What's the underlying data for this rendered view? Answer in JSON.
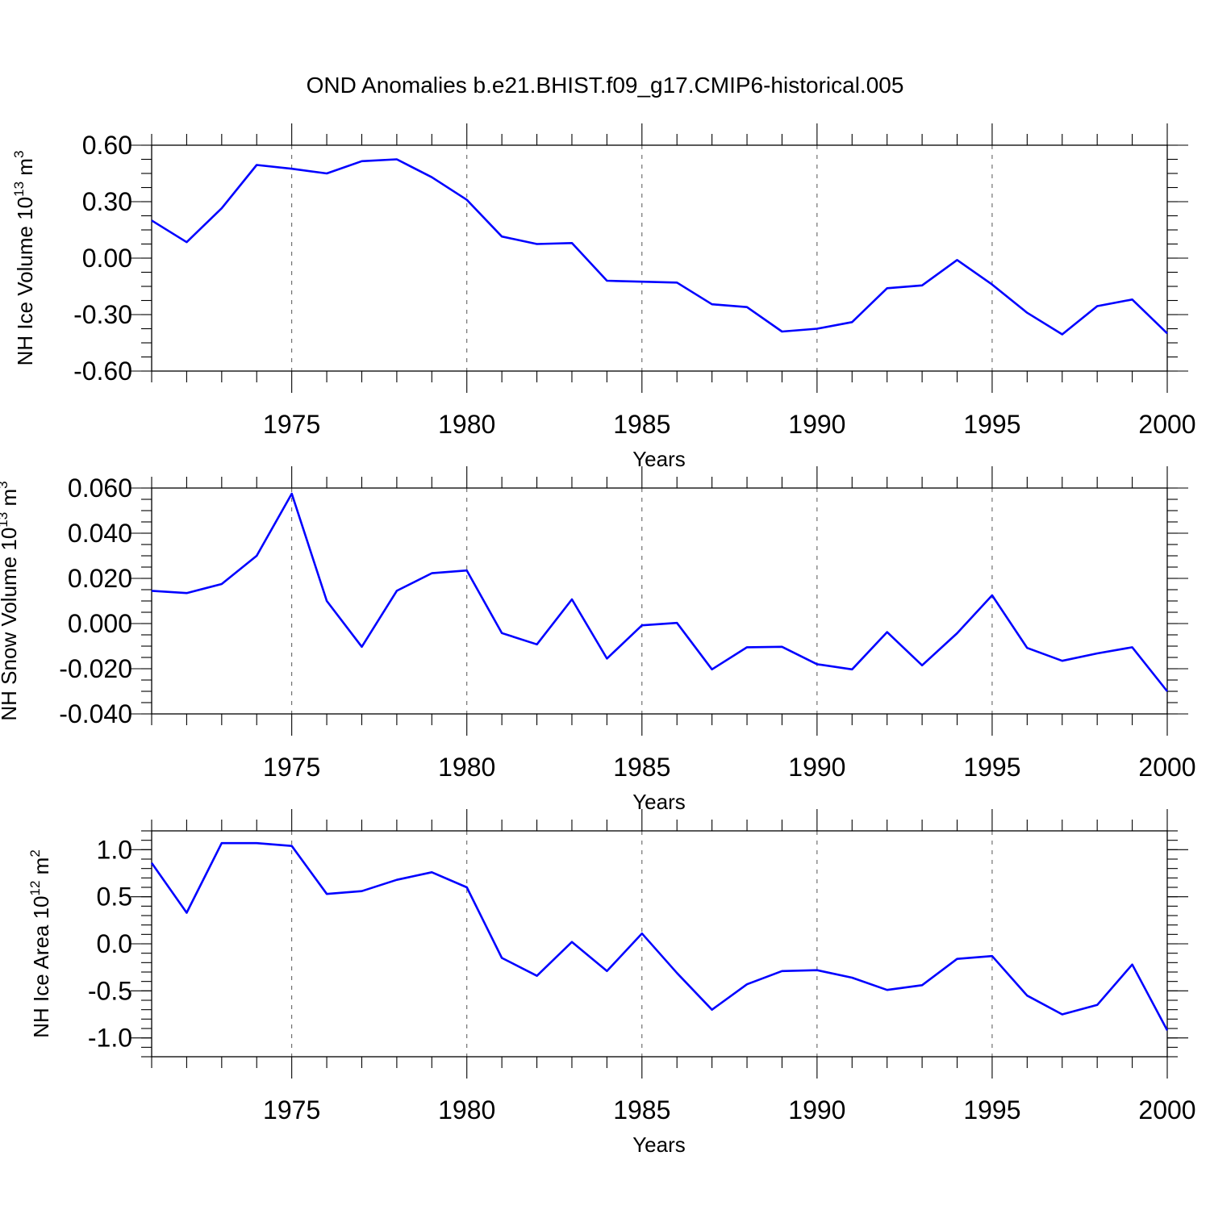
{
  "title": "OND Anomalies b.e21.BHIST.f09_g17.CMIP6-historical.005",
  "chart_data": [
    {
      "type": "line",
      "ylabel_main": "NH Ice Volume 10",
      "ylabel_exp": "13",
      "ylabel_unit": " m",
      "ylabel_unit_exp": "3",
      "xlabel": "Years",
      "xlim": [
        1971,
        2000
      ],
      "ylim": [
        -0.6,
        0.6
      ],
      "y_ticks": [
        "0.60",
        "0.30",
        "0.00",
        "-0.30",
        "-0.60"
      ],
      "y_tick_values": [
        0.6,
        0.3,
        0.0,
        -0.3,
        -0.6
      ],
      "x_ticks": [
        "1975",
        "1980",
        "1985",
        "1990",
        "1995",
        "2000"
      ],
      "x_tick_values": [
        1975,
        1980,
        1985,
        1990,
        1995,
        2000
      ],
      "grid": "dashed vertical at labeled years",
      "color": "#0000ff",
      "x": [
        1971,
        1972,
        1973,
        1974,
        1975,
        1976,
        1977,
        1978,
        1979,
        1980,
        1981,
        1982,
        1983,
        1984,
        1985,
        1986,
        1987,
        1988,
        1989,
        1990,
        1991,
        1992,
        1993,
        1994,
        1995,
        1996,
        1997,
        1998,
        1999,
        2000
      ],
      "values": [
        0.2,
        0.085,
        0.265,
        0.495,
        0.475,
        0.45,
        0.515,
        0.525,
        0.43,
        0.31,
        0.115,
        0.075,
        0.08,
        -0.12,
        -0.125,
        -0.13,
        -0.245,
        -0.26,
        -0.39,
        -0.375,
        -0.34,
        -0.16,
        -0.145,
        -0.01,
        -0.14,
        -0.29,
        -0.405,
        -0.255,
        -0.22,
        -0.4
      ]
    },
    {
      "type": "line",
      "ylabel_main": "NH Snow Volume 10",
      "ylabel_exp": "13",
      "ylabel_unit": " m",
      "ylabel_unit_exp": "3",
      "xlabel": "Years",
      "xlim": [
        1971,
        2000
      ],
      "ylim": [
        -0.04,
        0.06
      ],
      "y_ticks": [
        "0.060",
        "0.040",
        "0.020",
        "0.000",
        "-0.020",
        "-0.040"
      ],
      "y_tick_values": [
        0.06,
        0.04,
        0.02,
        0.0,
        -0.02,
        -0.04
      ],
      "x_ticks": [
        "1975",
        "1980",
        "1985",
        "1990",
        "1995",
        "2000"
      ],
      "x_tick_values": [
        1975,
        1980,
        1985,
        1990,
        1995,
        2000
      ],
      "grid": "dashed vertical at labeled years",
      "color": "#0000ff",
      "x": [
        1971,
        1972,
        1973,
        1974,
        1975,
        1976,
        1977,
        1978,
        1979,
        1980,
        1981,
        1982,
        1983,
        1984,
        1985,
        1986,
        1987,
        1988,
        1989,
        1990,
        1991,
        1992,
        1993,
        1994,
        1995,
        1996,
        1997,
        1998,
        1999,
        2000
      ],
      "values": [
        0.0145,
        0.0135,
        0.0175,
        0.03,
        0.0575,
        0.01,
        -0.0103,
        0.0145,
        0.0223,
        0.0235,
        -0.0042,
        -0.0092,
        0.0107,
        -0.0155,
        -0.0008,
        0.0003,
        -0.0203,
        -0.0105,
        -0.0103,
        -0.018,
        -0.0203,
        -0.0038,
        -0.0185,
        -0.0043,
        0.0125,
        -0.0108,
        -0.0165,
        -0.0132,
        -0.0105,
        -0.03
      ]
    },
    {
      "type": "line",
      "ylabel_main": "NH Ice Area 10",
      "ylabel_exp": "12",
      "ylabel_unit": " m",
      "ylabel_unit_exp": "2",
      "xlabel": "Years",
      "xlim": [
        1971,
        2000
      ],
      "ylim": [
        -1.2,
        1.2
      ],
      "y_ticks": [
        "1.0",
        "0.5",
        "0.0",
        "-0.5",
        "-1.0"
      ],
      "y_tick_values": [
        1.0,
        0.5,
        0.0,
        -0.5,
        -1.0
      ],
      "x_ticks": [
        "1975",
        "1980",
        "1985",
        "1990",
        "1995",
        "2000"
      ],
      "x_tick_values": [
        1975,
        1980,
        1985,
        1990,
        1995,
        2000
      ],
      "grid": "dashed vertical at labeled years",
      "color": "#0000ff",
      "x": [
        1971,
        1972,
        1973,
        1974,
        1975,
        1976,
        1977,
        1978,
        1979,
        1980,
        1981,
        1982,
        1983,
        1984,
        1985,
        1986,
        1987,
        1988,
        1989,
        1990,
        1991,
        1992,
        1993,
        1994,
        1995,
        1996,
        1997,
        1998,
        1999,
        2000
      ],
      "values": [
        0.86,
        0.33,
        1.07,
        1.07,
        1.04,
        0.53,
        0.56,
        0.68,
        0.76,
        0.6,
        -0.15,
        -0.34,
        0.02,
        -0.29,
        0.11,
        -0.31,
        -0.7,
        -0.43,
        -0.29,
        -0.28,
        -0.36,
        -0.49,
        -0.44,
        -0.16,
        -0.13,
        -0.55,
        -0.75,
        -0.65,
        -0.22,
        -0.92
      ]
    }
  ]
}
